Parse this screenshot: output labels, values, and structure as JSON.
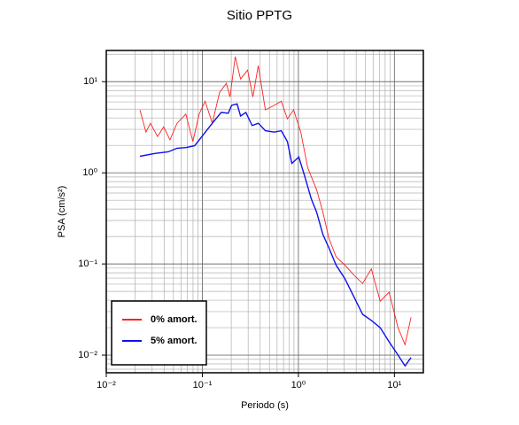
{
  "chart_data": {
    "type": "line",
    "title": "Sitio PPTG",
    "xlabel": "Periodo (s)",
    "ylabel": "PSA (cm/s²)",
    "xscale": "log",
    "yscale": "log",
    "grid": true,
    "legend": "lower left",
    "xlim": [
      0.01,
      20
    ],
    "ylim": [
      0.0064,
      22
    ],
    "xticks": [
      {
        "value": 0.01,
        "label": "10⁻²"
      },
      {
        "value": 0.1,
        "label": "10⁻¹"
      },
      {
        "value": 1,
        "label": "10⁰"
      },
      {
        "value": 10,
        "label": "10¹"
      }
    ],
    "yticks": [
      {
        "value": 0.01,
        "label": "10⁻²"
      },
      {
        "value": 0.1,
        "label": "10⁻¹"
      },
      {
        "value": 1,
        "label": "10⁰"
      },
      {
        "value": 10,
        "label": "10¹"
      }
    ],
    "xminorticks": [
      0.02,
      0.03,
      0.04,
      0.05,
      0.06,
      0.07,
      0.08,
      0.09,
      0.2,
      0.3,
      0.4,
      0.5,
      0.6,
      0.7,
      0.8,
      0.9,
      2,
      3,
      4,
      5,
      6,
      7,
      8,
      9
    ],
    "yminorticks": [
      0.007,
      0.008,
      0.009,
      0.02,
      0.03,
      0.04,
      0.05,
      0.06,
      0.07,
      0.08,
      0.09,
      0.2,
      0.3,
      0.4,
      0.5,
      0.6,
      0.7,
      0.8,
      0.9,
      2,
      3,
      4,
      5,
      6,
      7,
      8,
      9,
      20
    ],
    "series": [
      {
        "name": "0% amort.",
        "color": "#ff2020",
        "x": [
          0.0224,
          0.0259,
          0.0288,
          0.0342,
          0.0396,
          0.046,
          0.0545,
          0.0673,
          0.0798,
          0.0925,
          0.107,
          0.127,
          0.151,
          0.178,
          0.194,
          0.22,
          0.25,
          0.296,
          0.336,
          0.382,
          0.453,
          0.56,
          0.664,
          0.769,
          0.892,
          1.06,
          1.25,
          1.55,
          1.8,
          2.08,
          2.47,
          3.05,
          3.77,
          4.66,
          5.75,
          7.11,
          8.79,
          10.9,
          12.9,
          14.9
        ],
        "values": [
          4.9,
          2.8,
          3.5,
          2.5,
          3.2,
          2.3,
          3.5,
          4.4,
          2.2,
          4.4,
          6.1,
          3.5,
          7.6,
          9.6,
          6.8,
          18.8,
          10.7,
          13.4,
          6.8,
          15,
          4.9,
          5.5,
          6.1,
          3.9,
          4.9,
          2.8,
          1.14,
          0.65,
          0.37,
          0.19,
          0.12,
          0.097,
          0.076,
          0.061,
          0.088,
          0.039,
          0.049,
          0.02,
          0.013,
          0.026
        ]
      },
      {
        "name": "5% amort.",
        "color": "#1010ee",
        "x": [
          0.0224,
          0.0321,
          0.0441,
          0.0545,
          0.0673,
          0.0832,
          0.127,
          0.157,
          0.186,
          0.202,
          0.23,
          0.25,
          0.284,
          0.33,
          0.382,
          0.453,
          0.56,
          0.664,
          0.769,
          0.855,
          1.01,
          1.17,
          1.36,
          1.55,
          1.8,
          2.08,
          2.47,
          3.05,
          3.77,
          4.66,
          5.75,
          7.11,
          8.79,
          10.9,
          12.9,
          14.9
        ],
        "values": [
          1.52,
          1.63,
          1.7,
          1.86,
          1.89,
          1.98,
          3.5,
          4.6,
          4.5,
          5.5,
          5.7,
          4.2,
          4.6,
          3.3,
          3.5,
          2.9,
          2.8,
          2.9,
          2.2,
          1.27,
          1.49,
          0.9,
          0.52,
          0.37,
          0.21,
          0.15,
          0.097,
          0.069,
          0.044,
          0.028,
          0.024,
          0.02,
          0.014,
          0.01,
          0.0076,
          0.0094
        ]
      }
    ]
  }
}
